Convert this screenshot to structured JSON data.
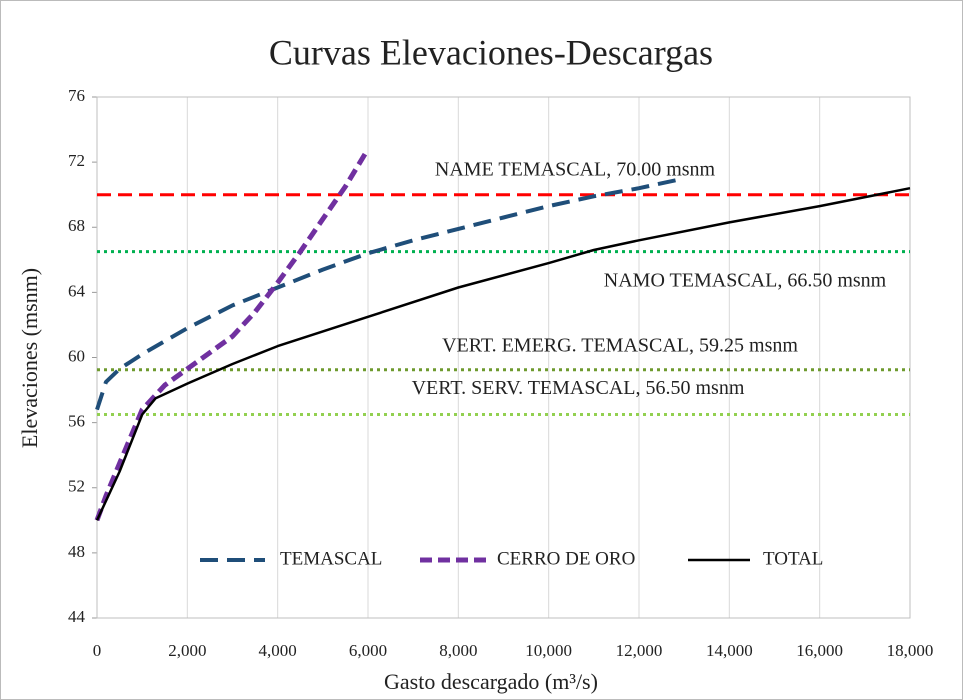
{
  "chart_data": {
    "type": "line",
    "title": "Curvas Elevaciones-Descargas",
    "x_label": "Gasto descargado (m³/s)",
    "y_label": "Elevaciones (msnm)",
    "xlim": [
      0,
      18000
    ],
    "xticks": [
      0,
      {
        "value": 2000,
        "label": "2,000"
      },
      {
        "value": 4000,
        "label": "4,000"
      },
      {
        "value": 6000,
        "label": "6,000"
      },
      {
        "value": 8000,
        "label": "8,000"
      },
      {
        "value": 10000,
        "label": "10,000"
      },
      {
        "value": 12000,
        "label": "12,000"
      },
      {
        "value": 14000,
        "label": "14,000"
      },
      {
        "value": 16000,
        "label": "16,000"
      },
      {
        "value": 18000,
        "label": "18,000"
      }
    ],
    "ylim": [
      44,
      76
    ],
    "yticks": [
      44,
      48,
      52,
      56,
      60,
      64,
      68,
      72,
      76
    ],
    "grid": "x",
    "legend": "bottom",
    "series": [
      {
        "name": "TEMASCAL",
        "color": "#1f4e79",
        "line_style": "dashed",
        "x": [
          0,
          200,
          500,
          1000,
          2000,
          3000,
          4000,
          5000,
          6000,
          7000,
          8000,
          9000,
          10000,
          11000,
          12000,
          13000
        ],
        "values": [
          56.8,
          58.5,
          59.3,
          60.2,
          61.8,
          63.2,
          64.3,
          65.4,
          66.4,
          67.2,
          67.9,
          68.6,
          69.3,
          69.9,
          70.4,
          71.0
        ]
      },
      {
        "name": "CERRO DE ORO",
        "color": "#7030a0",
        "line_style": "dashed",
        "x": [
          0,
          200,
          500,
          1000,
          1500,
          2000,
          3000,
          3500,
          4000,
          4500,
          5000,
          5500,
          6000
        ],
        "values": [
          50,
          51.5,
          53.5,
          56.8,
          58.3,
          59.3,
          61.3,
          62.8,
          64.6,
          66.5,
          68.5,
          70.5,
          72.8
        ]
      },
      {
        "name": "TOTAL",
        "color": "#000000",
        "line_style": "solid",
        "x": [
          0,
          500,
          1000,
          1300,
          2000,
          3000,
          4000,
          6000,
          8000,
          10000,
          11000,
          12000,
          14000,
          16000,
          18000
        ],
        "values": [
          50,
          53,
          56.5,
          57.5,
          58.4,
          59.6,
          60.7,
          62.5,
          64.3,
          65.8,
          66.6,
          67.2,
          68.3,
          69.3,
          70.4
        ]
      }
    ],
    "reference_lines": [
      {
        "label": "NAME  TEMASCAL,  70.00 msnm",
        "value": 70,
        "color": "#ff0000",
        "line_style": "dashed"
      },
      {
        "label": "NAMO  TEMASCAL,  66.50 msnm",
        "value": 66.5,
        "color": "#00b050",
        "line_style": "dotted"
      },
      {
        "label": "VERT. EMERG. TEMASCAL,  59.25 msnm",
        "value": 59.25,
        "color": "#6e9a2e",
        "line_style": "dotted"
      },
      {
        "label": "VERT. SERV. TEMASCAL,  56.50 msnm",
        "value": 56.5,
        "color": "#92d050",
        "line_style": "dotted"
      }
    ]
  }
}
